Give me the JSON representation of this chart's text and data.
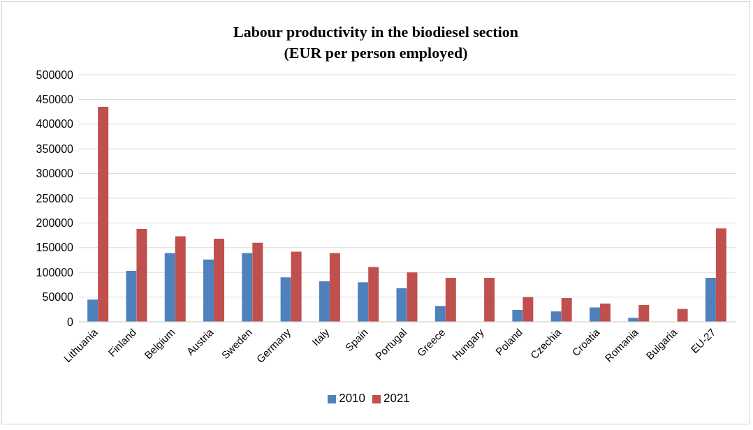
{
  "chart_data": {
    "type": "bar",
    "title": "Labour productivity in the biodiesel section",
    "subtitle": "(EUR per person employed)",
    "categories": [
      "Lithuania",
      "Finland",
      "Belgium",
      "Austria",
      "Sweden",
      "Germany",
      "Italy",
      "Spain",
      "Portugal",
      "Greece",
      "Hungary",
      "Poland",
      "Czechia",
      "Croatia",
      "Romania",
      "Bulgaria",
      "EU-27"
    ],
    "series": [
      {
        "name": "2010",
        "color": "#4f81bd",
        "values": [
          45000,
          103000,
          139000,
          126000,
          139000,
          90000,
          82000,
          80000,
          68000,
          32000,
          null,
          24000,
          21000,
          29000,
          8000,
          null,
          89000
        ]
      },
      {
        "name": "2021",
        "color": "#c0504d",
        "values": [
          435000,
          188000,
          173000,
          168000,
          160000,
          142000,
          139000,
          111000,
          100000,
          89000,
          89000,
          50000,
          48000,
          37000,
          34000,
          26000,
          189000
        ]
      }
    ],
    "ylim": [
      0,
      500000
    ],
    "yticks": [
      0,
      50000,
      100000,
      150000,
      200000,
      250000,
      300000,
      350000,
      400000,
      450000,
      500000
    ],
    "grid": "y",
    "legend": "bottom"
  }
}
